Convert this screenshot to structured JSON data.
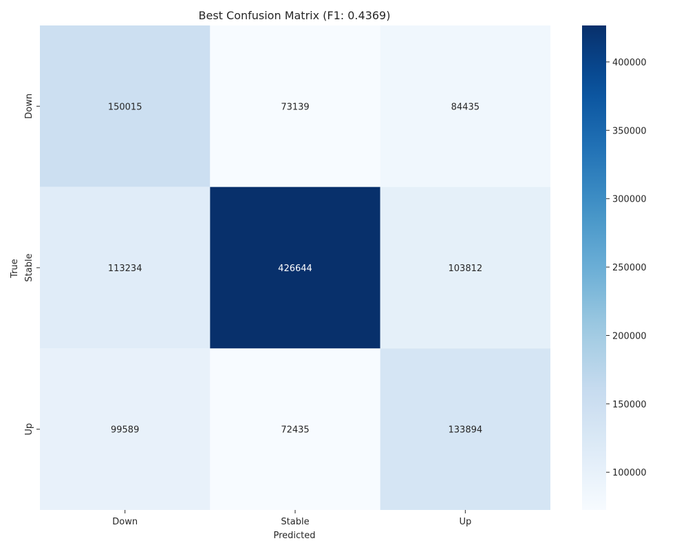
{
  "chart_data": {
    "type": "heatmap",
    "title": "Best Confusion Matrix (F1: 0.4369)",
    "xlabel": "Predicted",
    "ylabel": "True",
    "x_categories": [
      "Down",
      "Stable",
      "Up"
    ],
    "y_categories": [
      "Down",
      "Stable",
      "Up"
    ],
    "values": [
      [
        150015,
        73139,
        84435
      ],
      [
        113234,
        426644,
        103812
      ],
      [
        99589,
        72435,
        133894
      ]
    ],
    "value_range": [
      72435,
      426644
    ],
    "colormap": "Blues",
    "colorbar": {
      "ticks": [
        100000,
        150000,
        200000,
        250000,
        300000,
        350000,
        400000
      ]
    },
    "grid": false,
    "legend": "colorbar right"
  },
  "colors": {
    "low": "#f7fbff",
    "high": "#08306b",
    "text_dark": "#262626",
    "text_light": "#ffffff"
  }
}
